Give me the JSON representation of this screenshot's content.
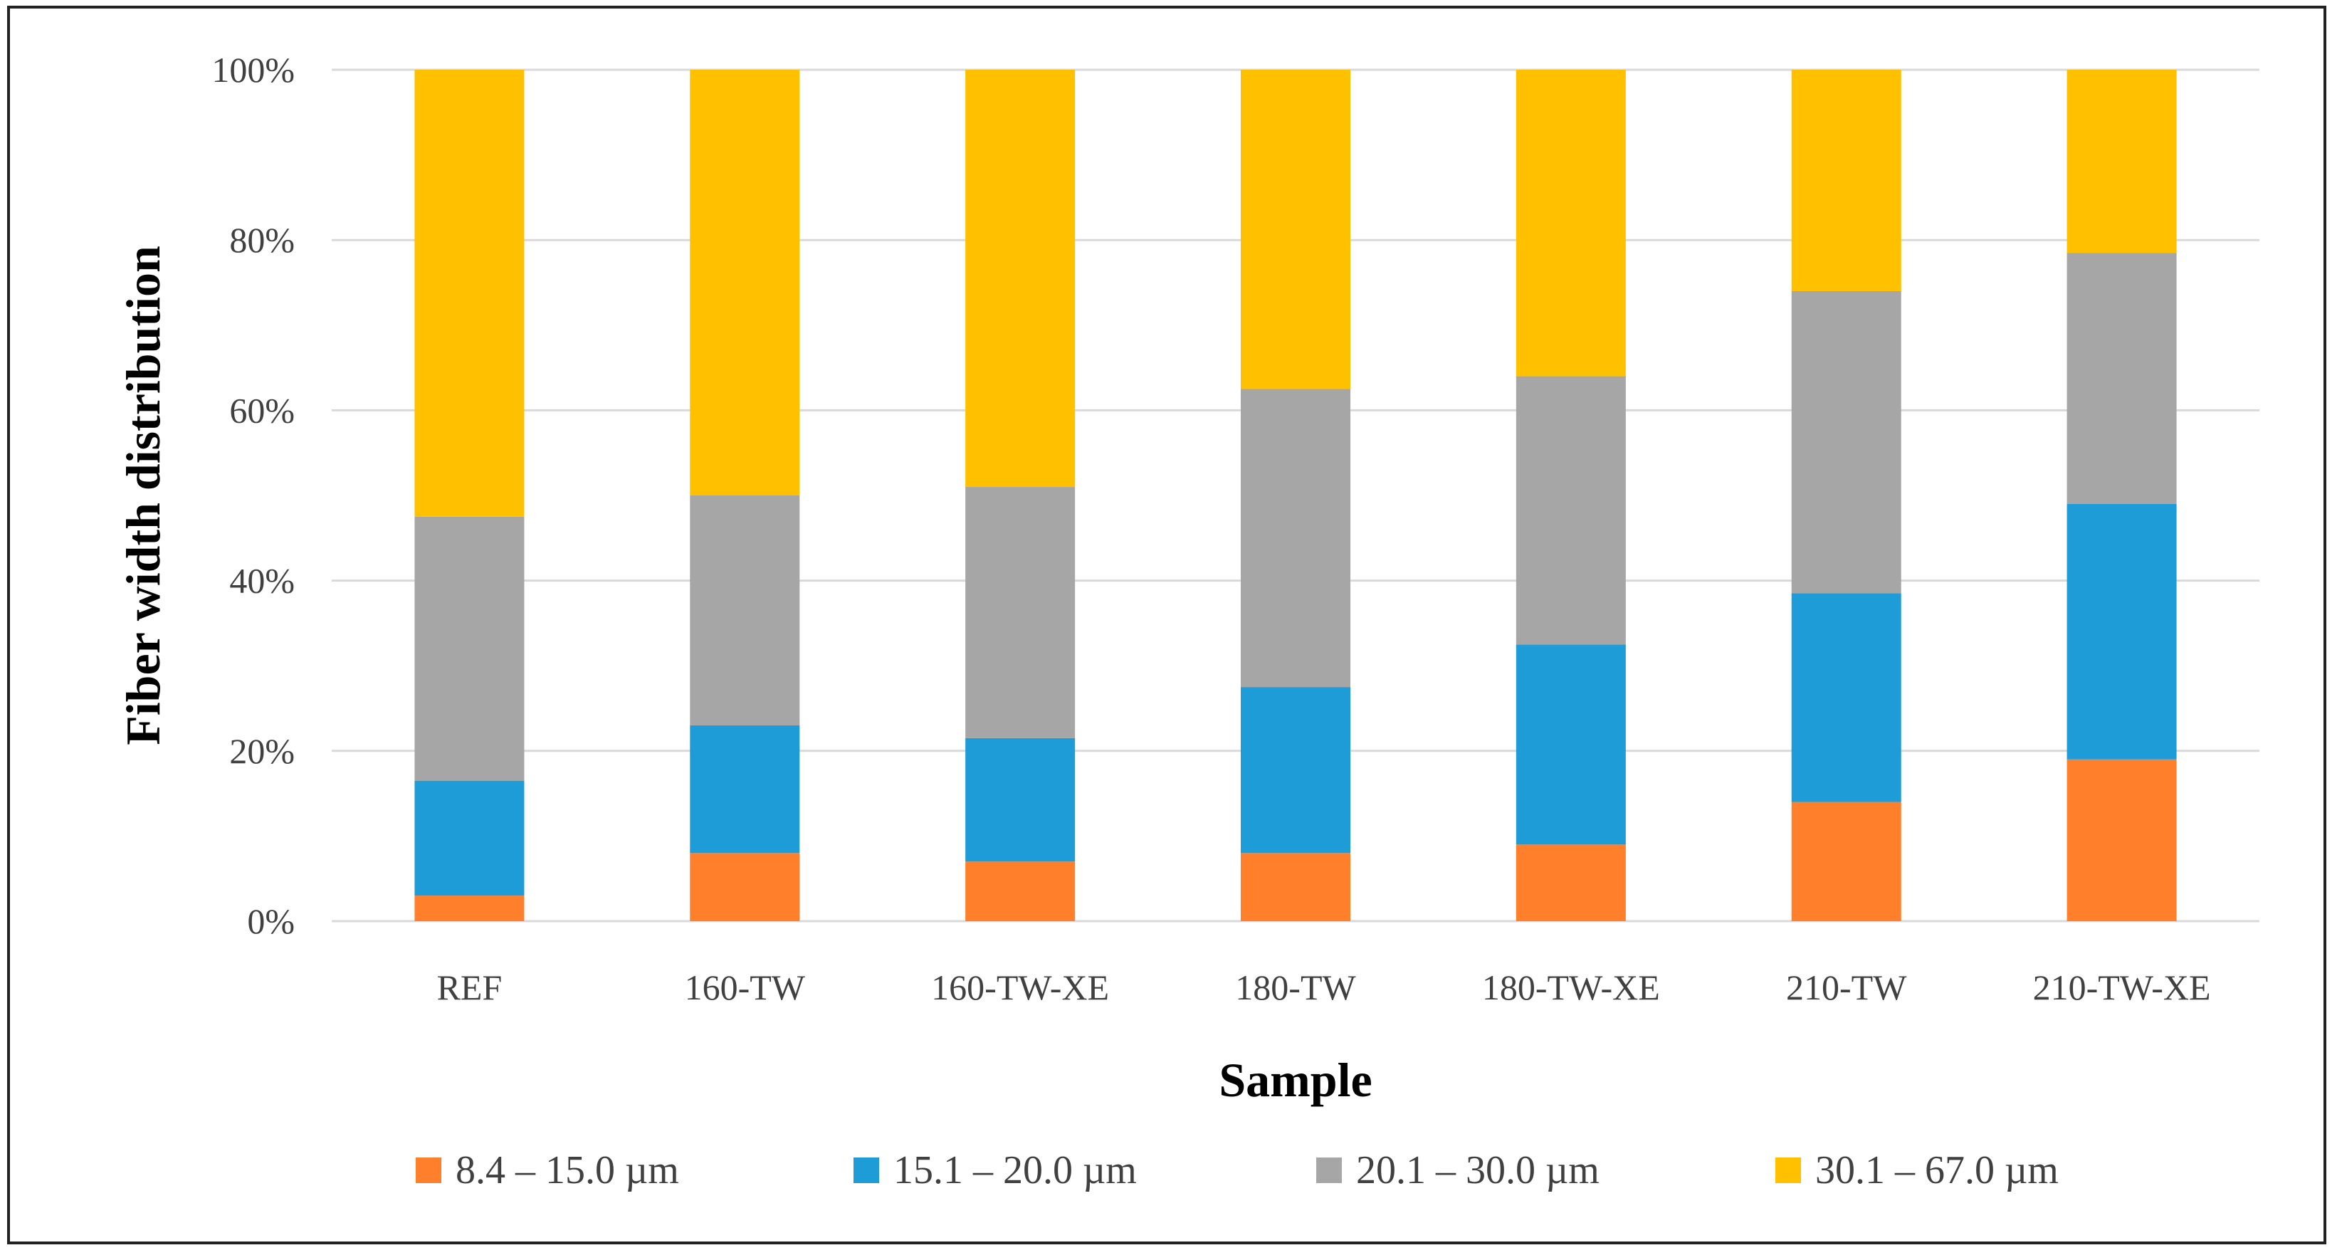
{
  "chart_data": {
    "type": "bar",
    "stacked": true,
    "percent": true,
    "title": "",
    "xlabel": "Sample",
    "ylabel": "Fiber width distribution",
    "ylim": [
      0,
      100
    ],
    "yticks": [
      "0%",
      "20%",
      "40%",
      "60%",
      "80%",
      "100%"
    ],
    "grid": true,
    "legend_position": "bottom",
    "categories": [
      "REF",
      "160-TW",
      "160-TW-XE",
      "180-TW",
      "180-TW-XE",
      "210-TW",
      "210-TW-XE"
    ],
    "series": [
      {
        "name": "8.4 – 15.0 µm",
        "color": "#FF7F2A",
        "values": [
          3,
          8,
          7,
          8,
          9,
          14,
          19
        ]
      },
      {
        "name": "15.1 – 20.0 µm",
        "color": "#1E9CD8",
        "values": [
          13.5,
          15,
          14.5,
          19.5,
          23.5,
          24.5,
          30
        ]
      },
      {
        "name": "20.1 – 30.0 µm",
        "color": "#A6A6A6",
        "values": [
          31,
          27,
          29.5,
          35,
          31.5,
          35.5,
          29.5
        ]
      },
      {
        "name": "30.1 – 67.0 µm",
        "color": "#FFC000",
        "values": [
          52.5,
          50,
          49,
          37.5,
          36,
          26,
          21.5
        ]
      }
    ]
  }
}
